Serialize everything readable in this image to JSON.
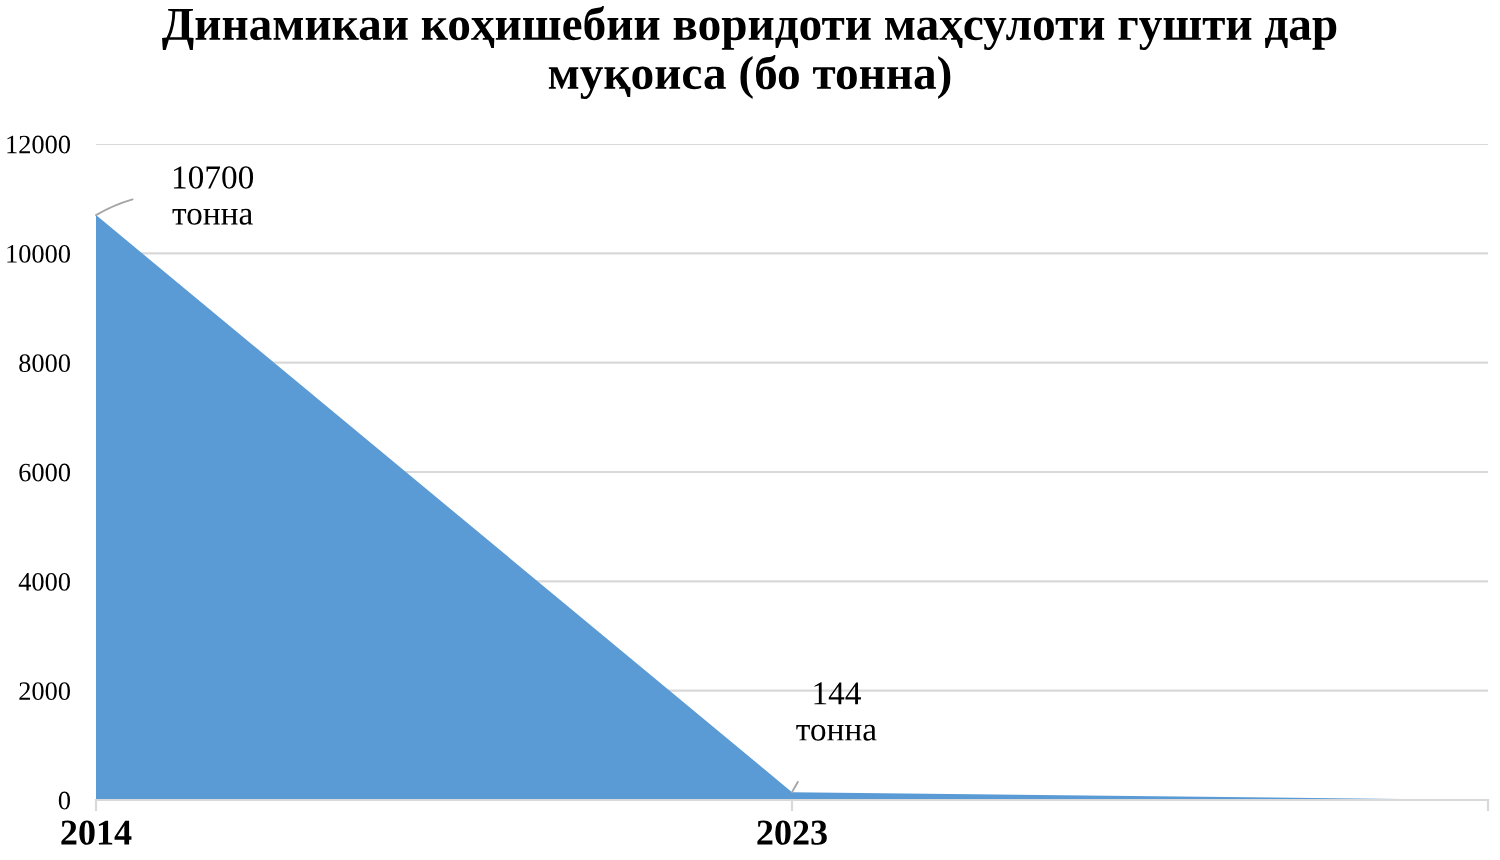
{
  "chart_data": {
    "type": "area",
    "title": "Динамикаи коҳишебии воридоти маҳсулоти гушти дар\nмуқоиса (бо тонна)",
    "categories": [
      "2014",
      "2023",
      null
    ],
    "series": [
      {
        "color": "#5b9bd5",
        "values": [
          10700,
          144,
          0
        ],
        "value_labels": [
          "10700\nтонна",
          "144\nтонна",
          null
        ]
      }
    ],
    "ylim": [
      0,
      12000
    ],
    "yticks": [
      0,
      2000,
      4000,
      6000,
      8000,
      10000,
      12000
    ],
    "grid": "y"
  }
}
